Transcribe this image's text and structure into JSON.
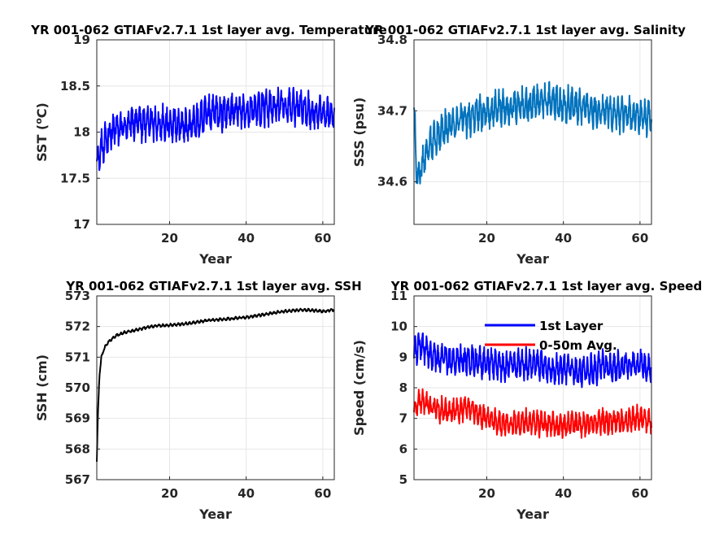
{
  "chart_data": [
    {
      "type": "line",
      "title": "YR 001-062 GTIAFv2.7.1 1st layer avg. Temperature",
      "xlabel": "Year",
      "ylabel": "SST (°C)",
      "ylabel_parts": {
        "base": "SST (",
        "sup": "o",
        "post": "C)"
      },
      "xlim": [
        1,
        63
      ],
      "ylim": [
        17,
        19
      ],
      "xticks": [
        20,
        40,
        60
      ],
      "yticks": [
        17,
        17.5,
        18,
        18.5,
        19
      ],
      "ytick_labels": [
        "17",
        "17.5",
        "18",
        "18.5",
        "19"
      ],
      "grid": true,
      "series": [
        {
          "color": "#0000ff",
          "note": "monthly; annual range approx. ±0.25",
          "x": [
            1,
            2,
            3,
            5,
            8,
            10,
            12,
            15,
            20,
            25,
            30,
            35,
            40,
            45,
            50,
            55,
            60,
            63
          ],
          "y": [
            17.7,
            17.8,
            17.9,
            18.0,
            18.05,
            18.1,
            18.1,
            18.1,
            18.1,
            18.05,
            18.2,
            18.2,
            18.25,
            18.25,
            18.3,
            18.25,
            18.2,
            18.2
          ],
          "amplitude": 0.22
        }
      ]
    },
    {
      "type": "line",
      "title": "YR 001-062 GTIAFv2.7.1 1st layer avg. Salinity",
      "xlabel": "Year",
      "ylabel": "SSS (psu)",
      "xlim": [
        1,
        63
      ],
      "ylim": [
        34.54,
        34.8
      ],
      "xticks": [
        20,
        40,
        60
      ],
      "yticks": [
        34.6,
        34.7,
        34.8
      ],
      "ytick_labels": [
        "34.6",
        "34.7",
        "34.8"
      ],
      "grid": true,
      "series": [
        {
          "color": "#0072bd",
          "x": [
            1,
            1.5,
            2,
            3,
            5,
            8,
            10,
            15,
            20,
            25,
            30,
            35,
            40,
            45,
            50,
            55,
            60,
            63
          ],
          "y": [
            34.71,
            34.63,
            34.61,
            34.62,
            34.65,
            34.67,
            34.68,
            34.69,
            34.7,
            34.705,
            34.71,
            34.715,
            34.71,
            34.705,
            34.7,
            34.695,
            34.69,
            34.69
          ],
          "amplitude": 0.028
        }
      ]
    },
    {
      "type": "line",
      "title": "YR 001-062 GTIAFv2.7.1 1st layer avg. SSH",
      "xlabel": "Year",
      "ylabel": "SSH (cm)",
      "xlim": [
        1,
        63
      ],
      "ylim": [
        567,
        573
      ],
      "xticks": [
        20,
        40,
        60
      ],
      "yticks": [
        567,
        568,
        569,
        570,
        571,
        572,
        573
      ],
      "ytick_labels": [
        "567",
        "568",
        "569",
        "570",
        "571",
        "572",
        "573"
      ],
      "grid": true,
      "series": [
        {
          "color": "#000000",
          "x": [
            1,
            1.3,
            1.7,
            2.2,
            3,
            4,
            6,
            8,
            10,
            15,
            20,
            25,
            30,
            35,
            40,
            45,
            50,
            55,
            60,
            63
          ],
          "y": [
            567.6,
            569.2,
            570.4,
            571.0,
            571.3,
            571.5,
            571.7,
            571.8,
            571.85,
            572.0,
            572.05,
            572.1,
            572.2,
            572.25,
            572.3,
            572.4,
            572.5,
            572.55,
            572.5,
            572.55
          ],
          "amplitude": 0.05
        }
      ]
    },
    {
      "type": "line",
      "title": "YR 001-062 GTIAFv2.7.1 1st layer avg. Speed",
      "xlabel": "Year",
      "ylabel": "Speed (cm/s)",
      "xlim": [
        1,
        63
      ],
      "ylim": [
        5,
        11
      ],
      "xticks": [
        20,
        40,
        60
      ],
      "yticks": [
        5,
        6,
        7,
        8,
        9,
        10,
        11
      ],
      "ytick_labels": [
        "5",
        "6",
        "7",
        "8",
        "9",
        "10",
        "11"
      ],
      "grid": true,
      "legend": "top-right",
      "series": [
        {
          "name": "1st Layer",
          "color": "#0000ff",
          "x": [
            1,
            3,
            5,
            10,
            15,
            20,
            25,
            30,
            35,
            40,
            45,
            50,
            55,
            60,
            63
          ],
          "y": [
            9.2,
            9.4,
            9.1,
            8.9,
            8.9,
            8.8,
            8.7,
            8.8,
            8.7,
            8.6,
            8.5,
            8.7,
            8.7,
            8.8,
            8.6
          ],
          "amplitude": 0.55
        },
        {
          "name": "0-50m Avg.",
          "color": "#ff0000",
          "x": [
            1,
            3,
            5,
            10,
            15,
            20,
            25,
            30,
            35,
            40,
            45,
            50,
            55,
            60,
            63
          ],
          "y": [
            7.3,
            7.6,
            7.4,
            7.2,
            7.3,
            7.0,
            6.8,
            6.9,
            6.8,
            6.8,
            6.8,
            6.9,
            6.9,
            7.0,
            6.9
          ],
          "amplitude": 0.45
        }
      ]
    }
  ]
}
